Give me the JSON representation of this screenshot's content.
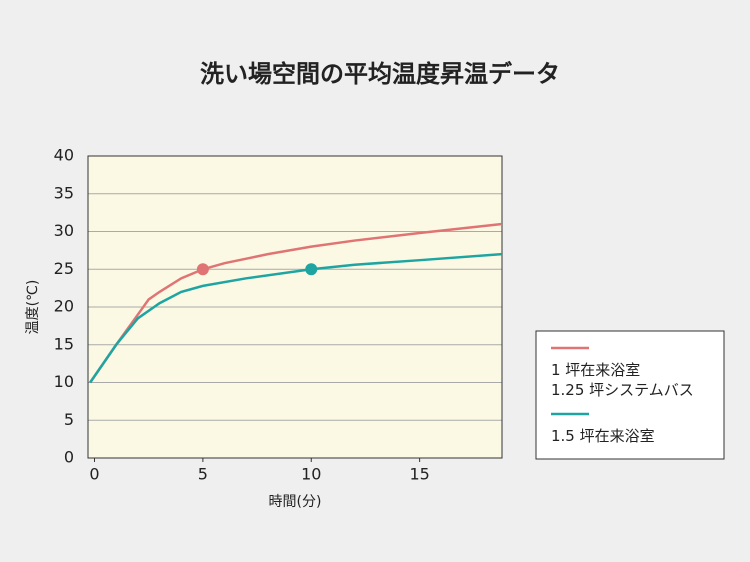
{
  "chart_data": {
    "type": "line",
    "title": "洗い場空間の平均温度昇温データ",
    "x_label": "時間(分)",
    "y_label": "温度(℃)",
    "xlim": [
      -0.3,
      18.8
    ],
    "xticks": [
      0,
      5,
      10,
      15
    ],
    "ylim": [
      0,
      40
    ],
    "yticks": [
      0,
      5,
      10,
      15,
      20,
      25,
      30,
      35,
      40
    ],
    "grid": true,
    "series": [
      {
        "name": "1 坪在来浴室\n1.25 坪システムバス",
        "color": "#e07474",
        "x": [
          -0.2,
          1,
          2,
          2.5,
          3,
          4,
          5,
          6,
          8,
          10,
          12,
          15,
          18.8
        ],
        "values": [
          10,
          15,
          19,
          21,
          22,
          23.8,
          25,
          25.8,
          27,
          28,
          28.8,
          29.8,
          31
        ],
        "marker": {
          "x": 5,
          "y": 25
        }
      },
      {
        "name": "1.5 坪在来浴室",
        "color": "#1ea5a2",
        "x": [
          -0.2,
          1,
          2,
          3,
          4,
          5,
          7,
          10,
          12,
          15,
          18.8
        ],
        "values": [
          10,
          15,
          18.5,
          20.5,
          22,
          22.8,
          23.8,
          25,
          25.6,
          26.2,
          27
        ],
        "marker": {
          "x": 10,
          "y": 25
        }
      }
    ]
  }
}
